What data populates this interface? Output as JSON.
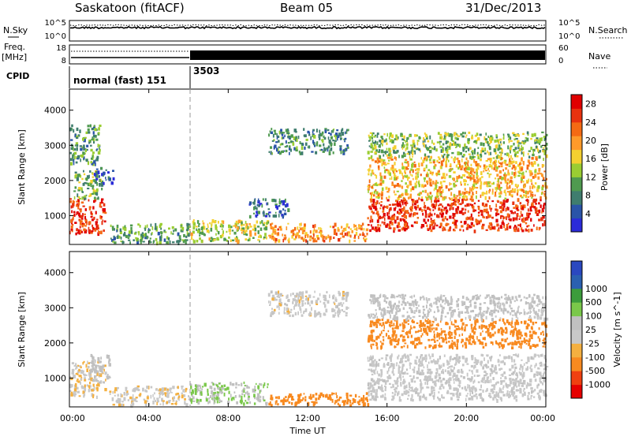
{
  "header": {
    "station": "Saskatoon (fitACF)",
    "beam": "Beam 05",
    "date": "31/Dec/2013"
  },
  "noise_panel": {
    "left_label": "N.Sky",
    "right_label": "N.Search",
    "left_ticks": [
      "10^5",
      "10^0"
    ],
    "right_ticks": [
      "10^5",
      "10^0"
    ]
  },
  "freq_panel": {
    "left_label_1": "Freq.",
    "left_label_2": "[MHz]",
    "right_label": "Nave",
    "left_ticks": [
      "18",
      "8"
    ],
    "right_ticks": [
      "60",
      "0"
    ]
  },
  "cpid_panel": {
    "label": "CPID",
    "segments": [
      {
        "name": "normal (fast) 151",
        "start_hour": 0
      },
      {
        "name": "3503",
        "start_hour": 6
      }
    ]
  },
  "x_axis": {
    "label": "Time UT",
    "ticks": [
      "00:00",
      "04:00",
      "08:00",
      "12:00",
      "16:00",
      "20:00",
      "00:00"
    ]
  },
  "y_axis": {
    "label": "Slant Range [km]",
    "ticks": [
      "1000",
      "2000",
      "3000",
      "4000"
    ]
  },
  "colors": {
    "power": [
      "#2b2bd9",
      "#2a54a8",
      "#3f7d6e",
      "#4f9a4f",
      "#9acd32",
      "#f4d030",
      "#ff9a2a",
      "#f56a14",
      "#e8320f",
      "#e00000"
    ],
    "velocity": [
      "#e60000",
      "#f04010",
      "#f88a20",
      "#f4b040",
      "#c8c8c8",
      "#c0c0c0",
      "#7ac84a",
      "#3c9c3c",
      "#2a60b0",
      "#2a48c0"
    ]
  },
  "chart_data": [
    {
      "type": "heatmap",
      "title": "Power",
      "xlabel": "Time UT",
      "ylabel": "Slant Range [km]",
      "xlim": [
        0,
        24
      ],
      "ylim": [
        180,
        4600
      ],
      "colorbar_label": "Power [dB]",
      "colorbar_ticks": [
        4,
        8,
        12,
        16,
        20,
        24,
        28
      ],
      "colorbar_range": [
        0,
        30
      ],
      "regions": [
        {
          "t": [
            0.0,
            1.8
          ],
          "r": [
            500,
            1500
          ],
          "value": 26
        },
        {
          "t": [
            0.2,
            1.6
          ],
          "r": [
            1500,
            2300
          ],
          "value": 12
        },
        {
          "t": [
            1.2,
            2.2
          ],
          "r": [
            1900,
            2400
          ],
          "value": 6
        },
        {
          "t": [
            0.0,
            1.5
          ],
          "r": [
            2500,
            3600
          ],
          "value": 10
        },
        {
          "t": [
            2.0,
            6.0
          ],
          "r": [
            250,
            800
          ],
          "value": 10
        },
        {
          "t": [
            6.0,
            10.0
          ],
          "r": [
            300,
            900
          ],
          "value": 14
        },
        {
          "t": [
            10.0,
            15.0
          ],
          "r": [
            300,
            800
          ],
          "value": 20
        },
        {
          "t": [
            10.0,
            14.0
          ],
          "r": [
            2800,
            3500
          ],
          "value": 8
        },
        {
          "t": [
            9.0,
            11.0
          ],
          "r": [
            1000,
            1500
          ],
          "value": 6
        },
        {
          "t": [
            15.0,
            24.0
          ],
          "r": [
            600,
            1500
          ],
          "value": 26
        },
        {
          "t": [
            15.0,
            24.0
          ],
          "r": [
            1500,
            2700
          ],
          "value": 18
        },
        {
          "t": [
            15.0,
            24.0
          ],
          "r": [
            2700,
            3400
          ],
          "value": 12
        }
      ]
    },
    {
      "type": "heatmap",
      "title": "Velocity",
      "xlabel": "Time UT",
      "ylabel": "Slant Range [km]",
      "xlim": [
        0,
        24
      ],
      "ylim": [
        180,
        4600
      ],
      "colorbar_label": "Velocity [m s^-1]",
      "colorbar_ticks": [
        -1000,
        -500,
        -100,
        -25,
        25,
        100,
        500,
        1000
      ],
      "regions": [
        {
          "t": [
            0.0,
            1.8
          ],
          "r": [
            500,
            1500
          ],
          "value": -20
        },
        {
          "t": [
            1.0,
            2.0
          ],
          "r": [
            900,
            1700
          ],
          "value": 60
        },
        {
          "t": [
            2.0,
            6.0
          ],
          "r": [
            250,
            800
          ],
          "value": -10
        },
        {
          "t": [
            6.0,
            10.0
          ],
          "r": [
            300,
            900
          ],
          "value": 100
        },
        {
          "t": [
            10.0,
            15.0
          ],
          "r": [
            250,
            600
          ],
          "value": -150
        },
        {
          "t": [
            10.0,
            14.0
          ],
          "r": [
            2800,
            3500
          ],
          "value": 0
        },
        {
          "t": [
            15.0,
            24.0
          ],
          "r": [
            400,
            1700
          ],
          "value": 5
        },
        {
          "t": [
            15.0,
            24.0
          ],
          "r": [
            1900,
            2700
          ],
          "value": -200
        },
        {
          "t": [
            15.0,
            24.0
          ],
          "r": [
            2700,
            3400
          ],
          "value": 40
        }
      ]
    }
  ]
}
